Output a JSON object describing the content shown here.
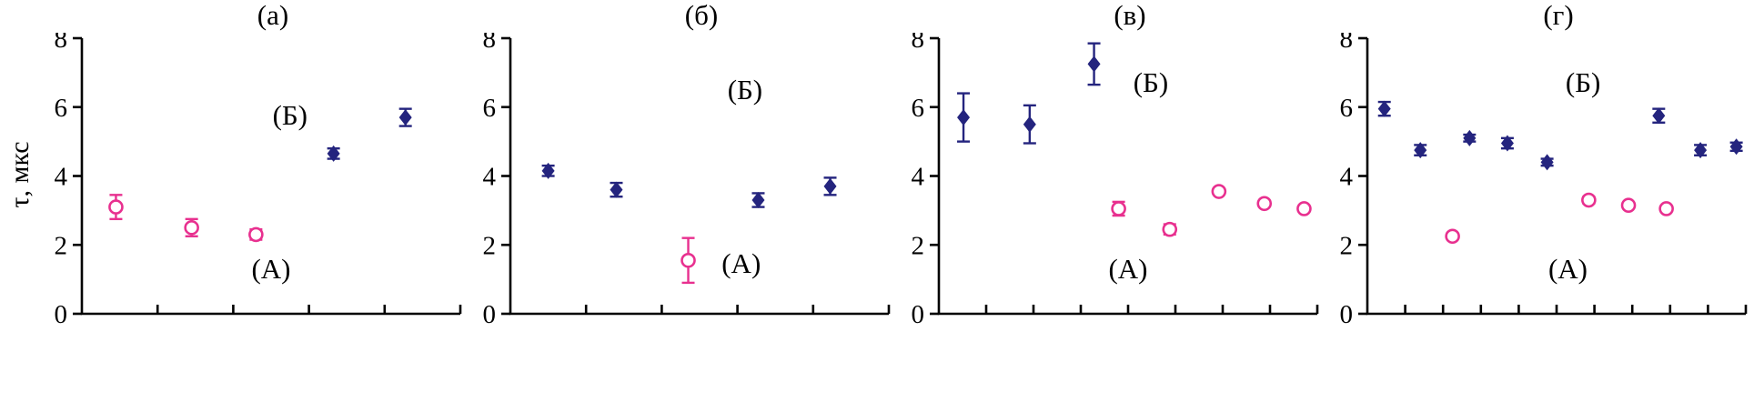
{
  "figure": {
    "ylabel": "τ, мкс"
  },
  "colors": {
    "series_A_circle": "#e8308f",
    "series_B_diamond": "#24247e",
    "axis": "#000000"
  },
  "chart_data": [
    {
      "type": "scatter",
      "title": "(а)",
      "ylim": [
        0,
        8
      ],
      "yticks": [
        0,
        2,
        4,
        6,
        8
      ],
      "n_xticks": 5,
      "grid": false,
      "annotations": [
        {
          "text": "(Б)",
          "x": 0.55,
          "y": 5.75
        },
        {
          "text": "(А)",
          "x": 0.5,
          "y": 1.3
        }
      ],
      "series": [
        {
          "name": "А",
          "marker": "circle",
          "color": "#e8308f",
          "points": [
            {
              "x": 0.09,
              "y": 3.1,
              "e": 0.35
            },
            {
              "x": 0.29,
              "y": 2.5,
              "e": 0.25
            },
            {
              "x": 0.46,
              "y": 2.3,
              "e": 0.15
            }
          ]
        },
        {
          "name": "Б",
          "marker": "diamond",
          "color": "#24247e",
          "points": [
            {
              "x": 0.665,
              "y": 4.65,
              "e": 0.15
            },
            {
              "x": 0.855,
              "y": 5.7,
              "e": 0.25
            }
          ]
        }
      ]
    },
    {
      "type": "scatter",
      "title": "(б)",
      "ylim": [
        0,
        8
      ],
      "yticks": [
        0,
        2,
        4,
        6,
        8
      ],
      "n_xticks": 5,
      "grid": false,
      "annotations": [
        {
          "text": "(Б)",
          "x": 0.62,
          "y": 6.5
        },
        {
          "text": "(А)",
          "x": 0.61,
          "y": 1.45
        }
      ],
      "series": [
        {
          "name": "А",
          "marker": "circle",
          "color": "#e8308f",
          "points": [
            {
              "x": 0.47,
              "y": 1.55,
              "e": 0.65
            }
          ]
        },
        {
          "name": "Б",
          "marker": "diamond",
          "color": "#24247e",
          "points": [
            {
              "x": 0.1,
              "y": 4.15,
              "e": 0.15
            },
            {
              "x": 0.28,
              "y": 3.6,
              "e": 0.2
            },
            {
              "x": 0.655,
              "y": 3.3,
              "e": 0.2
            },
            {
              "x": 0.845,
              "y": 3.7,
              "e": 0.25
            }
          ]
        }
      ]
    },
    {
      "type": "scatter",
      "title": "(в)",
      "ylim": [
        0,
        8
      ],
      "yticks": [
        0,
        2,
        4,
        6,
        8
      ],
      "n_xticks": 8,
      "grid": false,
      "annotations": [
        {
          "text": "(Б)",
          "x": 0.56,
          "y": 6.7
        },
        {
          "text": "(А)",
          "x": 0.5,
          "y": 1.3
        }
      ],
      "series": [
        {
          "name": "А",
          "marker": "circle",
          "color": "#e8308f",
          "points": [
            {
              "x": 0.475,
              "y": 3.05,
              "e": 0.2
            },
            {
              "x": 0.61,
              "y": 2.45,
              "e": 0.15
            },
            {
              "x": 0.74,
              "y": 3.55,
              "e": 0
            },
            {
              "x": 0.86,
              "y": 3.2,
              "e": 0
            },
            {
              "x": 0.965,
              "y": 3.05,
              "e": 0
            }
          ]
        },
        {
          "name": "Б",
          "marker": "diamond",
          "color": "#24247e",
          "points": [
            {
              "x": 0.065,
              "y": 5.7,
              "e": 0.7
            },
            {
              "x": 0.24,
              "y": 5.5,
              "e": 0.55
            },
            {
              "x": 0.41,
              "y": 7.25,
              "e": 0.6
            }
          ]
        }
      ]
    },
    {
      "type": "scatter",
      "title": "(г)",
      "ylim": [
        0,
        8
      ],
      "yticks": [
        0,
        2,
        4,
        6,
        8
      ],
      "n_xticks": 10,
      "grid": false,
      "annotations": [
        {
          "text": "(Б)",
          "x": 0.57,
          "y": 6.7
        },
        {
          "text": "(А)",
          "x": 0.53,
          "y": 1.3
        }
      ],
      "series": [
        {
          "name": "А",
          "marker": "circle",
          "color": "#e8308f",
          "points": [
            {
              "x": 0.225,
              "y": 2.25,
              "e": 0
            },
            {
              "x": 0.585,
              "y": 3.3,
              "e": 0.1
            },
            {
              "x": 0.69,
              "y": 3.15,
              "e": 0
            },
            {
              "x": 0.79,
              "y": 3.05,
              "e": 0
            }
          ]
        },
        {
          "name": "Б",
          "marker": "diamond",
          "color": "#24247e",
          "points": [
            {
              "x": 0.045,
              "y": 5.95,
              "e": 0.2
            },
            {
              "x": 0.14,
              "y": 4.75,
              "e": 0.15
            },
            {
              "x": 0.27,
              "y": 5.1,
              "e": 0.1
            },
            {
              "x": 0.37,
              "y": 4.95,
              "e": 0.15
            },
            {
              "x": 0.475,
              "y": 4.4,
              "e": 0.1
            },
            {
              "x": 0.77,
              "y": 5.75,
              "e": 0.2
            },
            {
              "x": 0.88,
              "y": 4.75,
              "e": 0.15
            },
            {
              "x": 0.975,
              "y": 4.85,
              "e": 0.12
            }
          ]
        }
      ]
    }
  ]
}
